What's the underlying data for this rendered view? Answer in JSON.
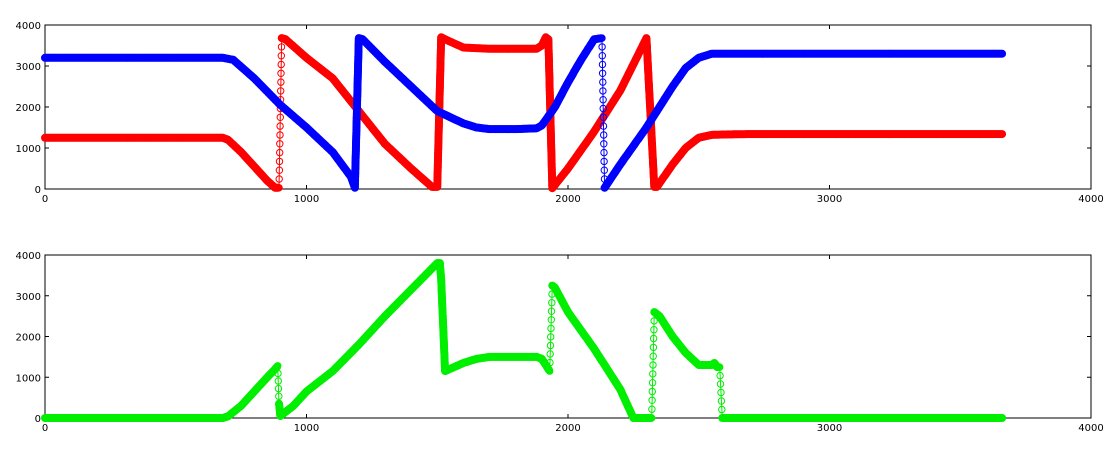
{
  "colors": {
    "series1": "#ff0000",
    "series2": "#0000ff",
    "series3": "#00ee00",
    "axis": "#000000",
    "background": "#ffffff"
  },
  "chart_data": [
    {
      "type": "line",
      "marker": "circle",
      "xlim": [
        0,
        4000
      ],
      "ylim": [
        0,
        4000
      ],
      "xticks": [
        0,
        1000,
        2000,
        3000,
        4000
      ],
      "yticks": [
        0,
        1000,
        2000,
        3000,
        4000
      ],
      "xtick_labels": [
        "0",
        "1000",
        "2000",
        "3000",
        "4000"
      ],
      "ytick_labels": [
        "0",
        "1000",
        "2000",
        "3000",
        "4000"
      ],
      "grid": false,
      "series": [
        {
          "color": "#ff0000",
          "x": [
            0,
            680,
            700,
            750,
            800,
            850,
            880,
            895,
            905,
            920,
            1000,
            1100,
            1200,
            1300,
            1400,
            1480,
            1500,
            1515,
            1530,
            1600,
            1700,
            1800,
            1880,
            1900,
            1915,
            1925,
            1940,
            2000,
            2100,
            2200,
            2300,
            2330,
            2340,
            2400,
            2450,
            2500,
            2550,
            2600,
            2700,
            3000,
            3300,
            3660
          ],
          "y": [
            1250,
            1250,
            1200,
            900,
            550,
            200,
            30,
            30,
            3680,
            3650,
            3200,
            2700,
            1900,
            1100,
            500,
            50,
            50,
            3700,
            3650,
            3450,
            3420,
            3420,
            3420,
            3500,
            3700,
            3650,
            20,
            500,
            1400,
            2400,
            3680,
            50,
            50,
            600,
            1000,
            1250,
            1320,
            1330,
            1340,
            1340,
            1340,
            1340
          ]
        },
        {
          "color": "#0000ff",
          "x": [
            0,
            680,
            720,
            800,
            900,
            1000,
            1100,
            1170,
            1185,
            1200,
            1215,
            1300,
            1400,
            1500,
            1600,
            1650,
            1700,
            1800,
            1880,
            1900,
            1950,
            2000,
            2050,
            2100,
            2130,
            2140,
            2200,
            2300,
            2400,
            2450,
            2500,
            2550,
            2600,
            3000,
            3300,
            3660
          ],
          "y": [
            3200,
            3200,
            3150,
            2700,
            2050,
            1500,
            900,
            300,
            30,
            3680,
            3650,
            3100,
            2500,
            1900,
            1600,
            1500,
            1460,
            1460,
            1480,
            1550,
            2000,
            2600,
            3150,
            3650,
            3680,
            30,
            600,
            1500,
            2500,
            2950,
            3200,
            3300,
            3300,
            3300,
            3300,
            3300
          ]
        }
      ]
    },
    {
      "type": "line",
      "marker": "circle",
      "xlim": [
        0,
        4000
      ],
      "ylim": [
        0,
        4000
      ],
      "xticks": [
        0,
        1000,
        2000,
        3000,
        4000
      ],
      "yticks": [
        0,
        1000,
        2000,
        3000,
        4000
      ],
      "xtick_labels": [
        "0",
        "1000",
        "2000",
        "3000",
        "4000"
      ],
      "ytick_labels": [
        "0",
        "1000",
        "2000",
        "3000",
        "4000"
      ],
      "grid": false,
      "series": [
        {
          "color": "#00ee00",
          "x": [
            0,
            680,
            700,
            750,
            800,
            850,
            880,
            890,
            895,
            900,
            950,
            1000,
            1100,
            1200,
            1300,
            1400,
            1500,
            1510,
            1515,
            1530,
            1600,
            1650,
            1700,
            1800,
            1880,
            1900,
            1930,
            1940,
            1950,
            2000,
            2100,
            2200,
            2250,
            2300,
            2320,
            2330,
            2350,
            2400,
            2450,
            2500,
            2550,
            2560,
            2570,
            2580,
            2590,
            3000,
            3300,
            3660
          ],
          "y": [
            0,
            0,
            40,
            300,
            650,
            1000,
            1200,
            1280,
            350,
            50,
            300,
            650,
            1150,
            1800,
            2500,
            3150,
            3800,
            3800,
            3400,
            1150,
            1350,
            1450,
            1500,
            1500,
            1500,
            1450,
            1150,
            3250,
            3200,
            2600,
            1700,
            700,
            0,
            0,
            0,
            2600,
            2500,
            2000,
            1600,
            1300,
            1300,
            1350,
            1250,
            1250,
            0,
            0,
            0,
            0
          ]
        }
      ]
    }
  ]
}
